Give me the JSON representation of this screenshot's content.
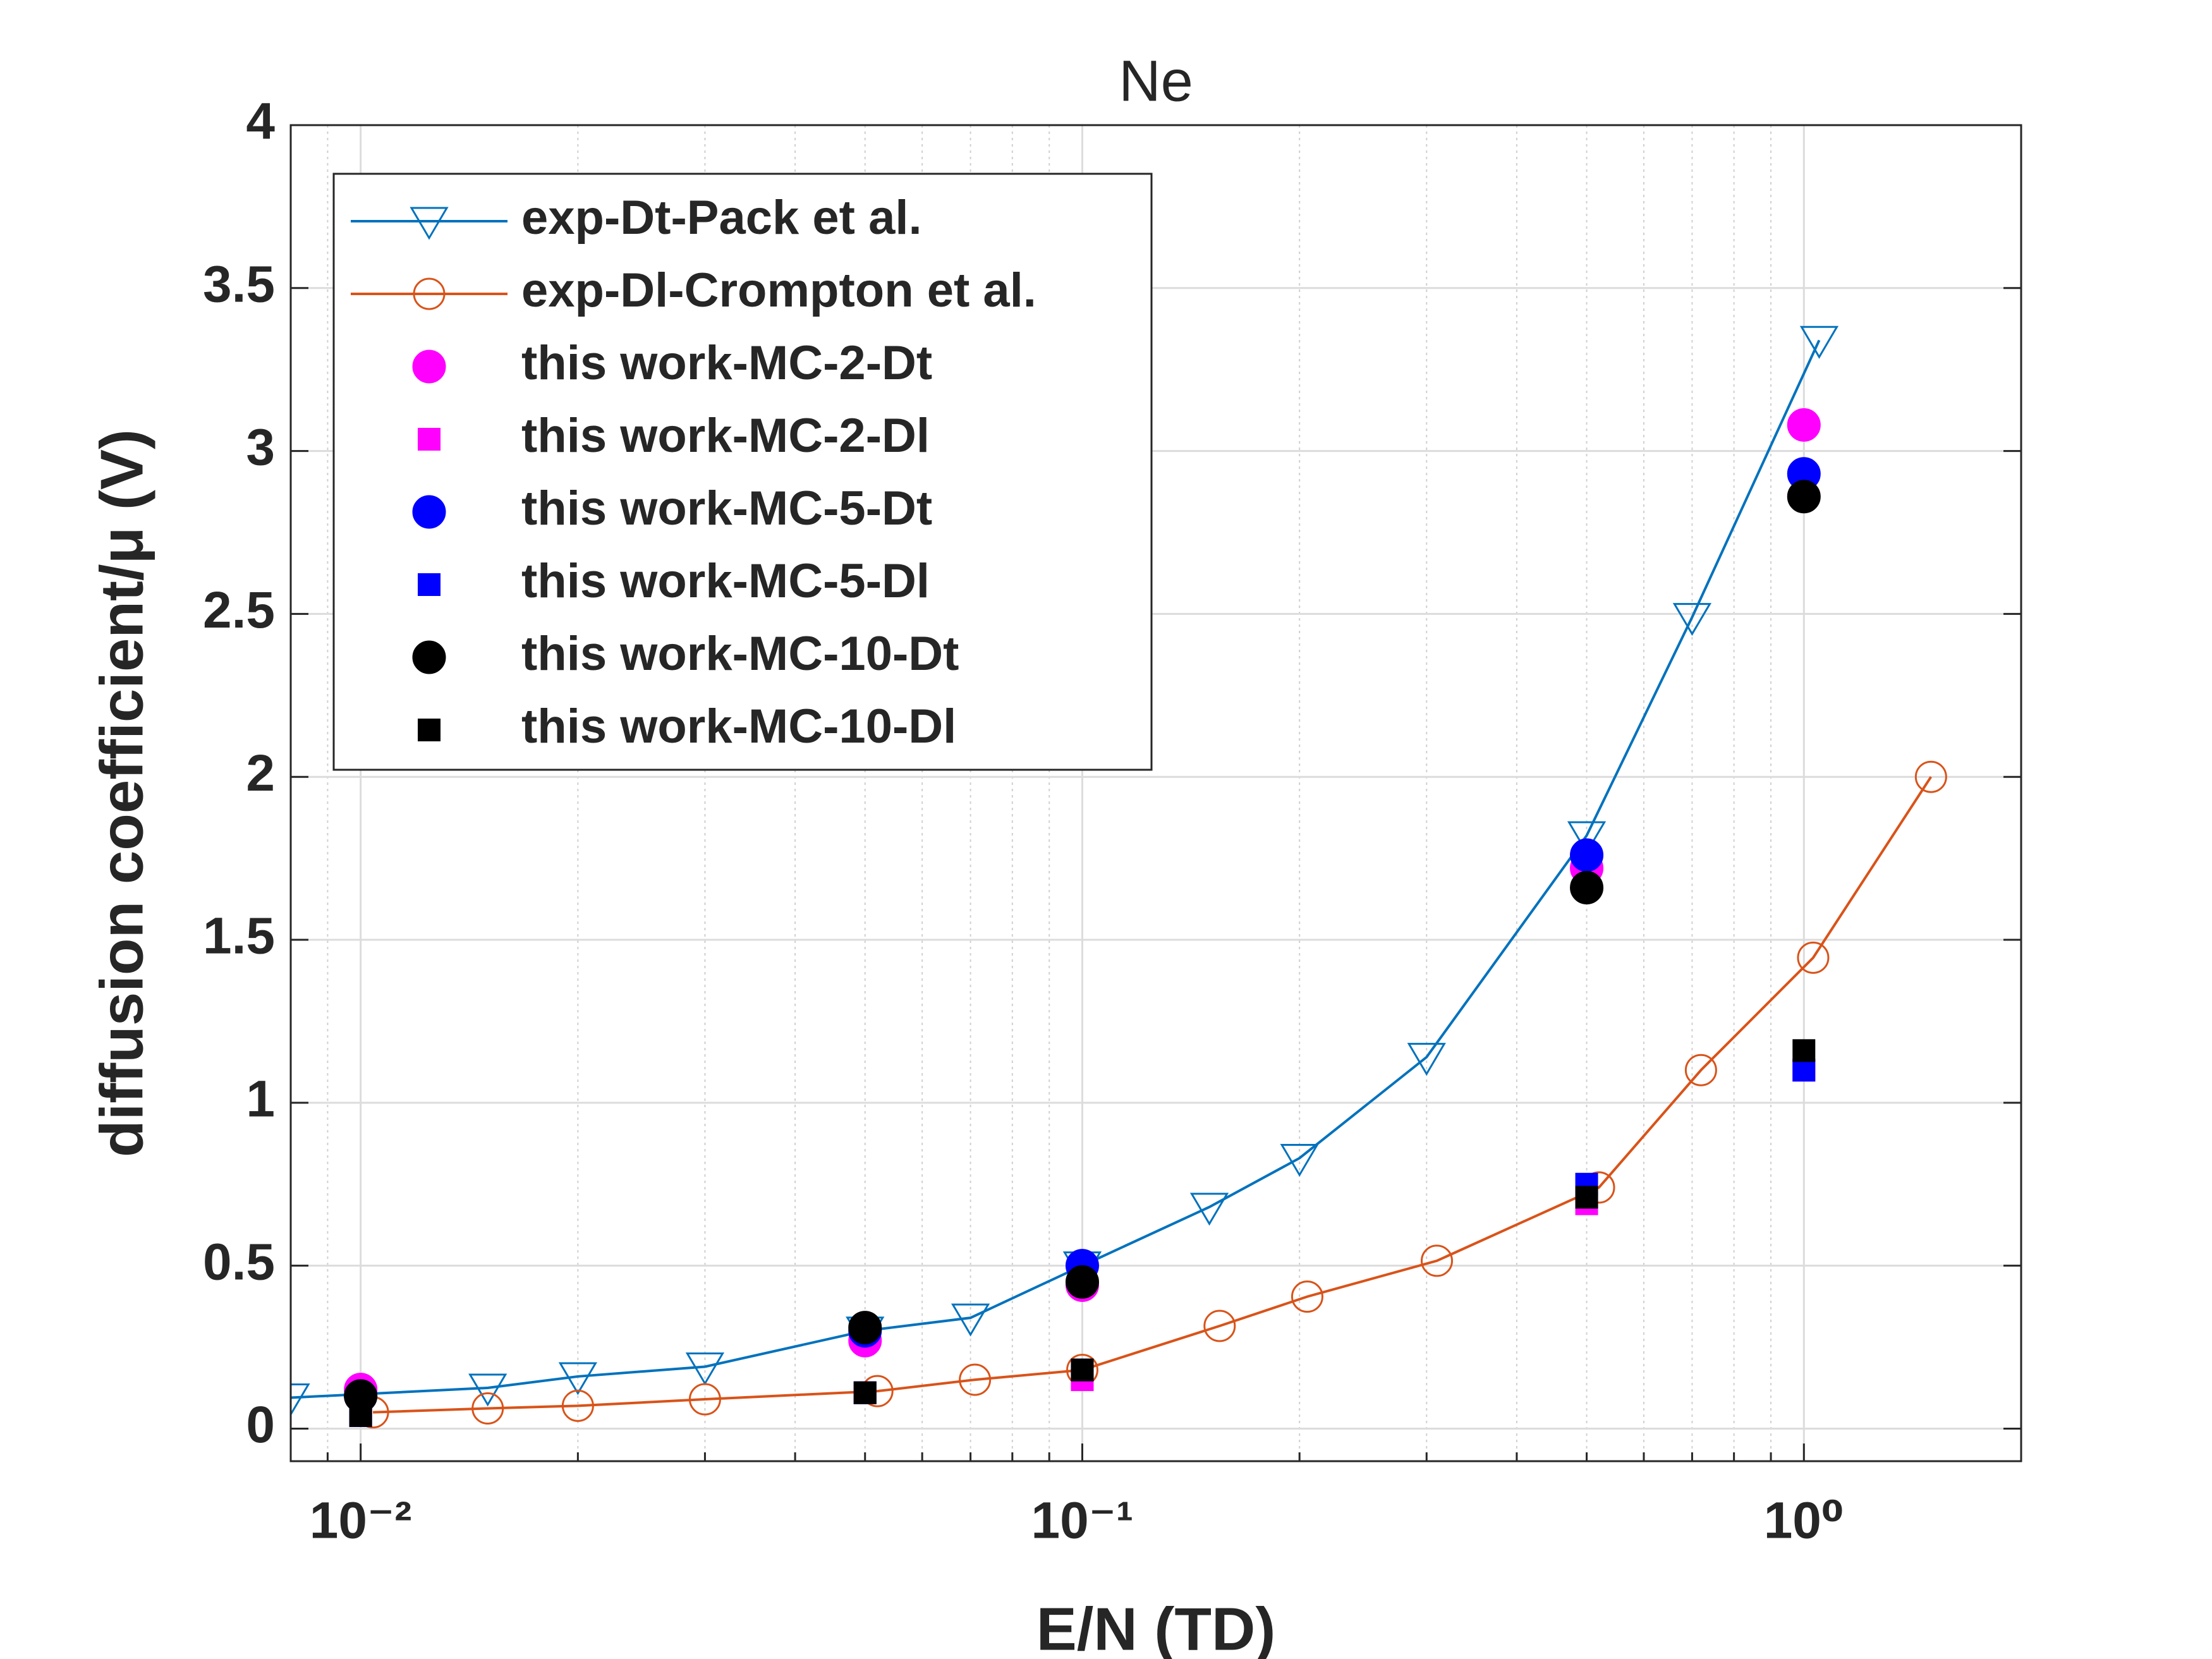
{
  "chart_data": {
    "type": "scatter-line",
    "title": "Ne",
    "x_label": "E/N (TD)",
    "y_label": "diffusion coefficient/μ (V)",
    "xscale": "log",
    "xlim": [
      0.008,
      2
    ],
    "ylim": [
      -0.1,
      4
    ],
    "xticks": [
      {
        "value": 0.01,
        "label": "10⁻²"
      },
      {
        "value": 0.1,
        "label": "10⁻¹"
      },
      {
        "value": 1,
        "label": "10⁰"
      }
    ],
    "xminorticks": [
      0.009,
      0.02,
      0.03,
      0.04,
      0.05,
      0.06,
      0.07,
      0.08,
      0.09,
      0.2,
      0.3,
      0.4,
      0.5,
      0.6,
      0.7,
      0.8,
      0.9,
      2
    ],
    "yticks": [
      0,
      0.5,
      1,
      1.5,
      2,
      2.5,
      3,
      3.5,
      4
    ],
    "grid": true,
    "legend": "upper left",
    "series": [
      {
        "name": "exp-Dt-Pack et al.",
        "color": "#0072BD",
        "marker": "triangle-down",
        "filled": false,
        "line": true,
        "x": [
          0.008,
          0.015,
          0.02,
          0.03,
          0.05,
          0.07,
          0.1,
          0.15,
          0.2,
          0.3,
          0.5,
          0.7,
          1.05
        ],
        "values": [
          0.095,
          0.125,
          0.16,
          0.19,
          0.3,
          0.34,
          0.5,
          0.68,
          0.83,
          1.14,
          1.82,
          2.49,
          3.34
        ]
      },
      {
        "name": "exp-Dl-Crompton et al.",
        "color": "#D95319",
        "marker": "circle",
        "filled": false,
        "line": true,
        "x": [
          0.0104,
          0.015,
          0.02,
          0.03,
          0.052,
          0.071,
          0.1,
          0.155,
          0.205,
          0.31,
          0.52,
          0.72,
          1.03,
          1.5
        ],
        "values": [
          0.05,
          0.062,
          0.07,
          0.09,
          0.115,
          0.15,
          0.18,
          0.315,
          0.405,
          0.515,
          0.74,
          1.1,
          1.445,
          2.0
        ]
      },
      {
        "name": "this work-MC-2-Dt",
        "color": "#FF00FF",
        "marker": "circle",
        "filled": true,
        "line": false,
        "x": [
          0.01,
          0.05,
          0.1,
          0.5,
          1
        ],
        "values": [
          0.12,
          0.27,
          0.44,
          1.72,
          3.08
        ]
      },
      {
        "name": "this work-MC-2-Dl",
        "color": "#FF00FF",
        "marker": "square",
        "filled": true,
        "line": false,
        "x": [
          0.01,
          0.05,
          0.1,
          0.5,
          1
        ],
        "values": [
          0.04,
          0.11,
          0.15,
          0.69,
          1.1
        ]
      },
      {
        "name": "this work-MC-5-Dt",
        "color": "#0000FF",
        "marker": "circle",
        "filled": true,
        "line": false,
        "x": [
          0.01,
          0.05,
          0.1,
          0.5,
          1
        ],
        "values": [
          0.1,
          0.3,
          0.5,
          1.76,
          2.93
        ]
      },
      {
        "name": "this work-MC-5-Dl",
        "color": "#0000FF",
        "marker": "square",
        "filled": true,
        "line": false,
        "x": [
          0.01,
          0.05,
          0.1,
          0.5,
          1
        ],
        "values": [
          0.04,
          0.11,
          0.18,
          0.75,
          1.1
        ]
      },
      {
        "name": "this work-MC-10-Dt",
        "color": "#000000",
        "marker": "circle",
        "filled": true,
        "line": false,
        "x": [
          0.01,
          0.05,
          0.1,
          0.5,
          1
        ],
        "values": [
          0.1,
          0.31,
          0.45,
          1.66,
          2.86
        ]
      },
      {
        "name": "this work-MC-10-Dl",
        "color": "#000000",
        "marker": "square",
        "filled": true,
        "line": false,
        "x": [
          0.01,
          0.05,
          0.1,
          0.5,
          1
        ],
        "values": [
          0.04,
          0.11,
          0.18,
          0.71,
          1.16
        ]
      }
    ]
  }
}
